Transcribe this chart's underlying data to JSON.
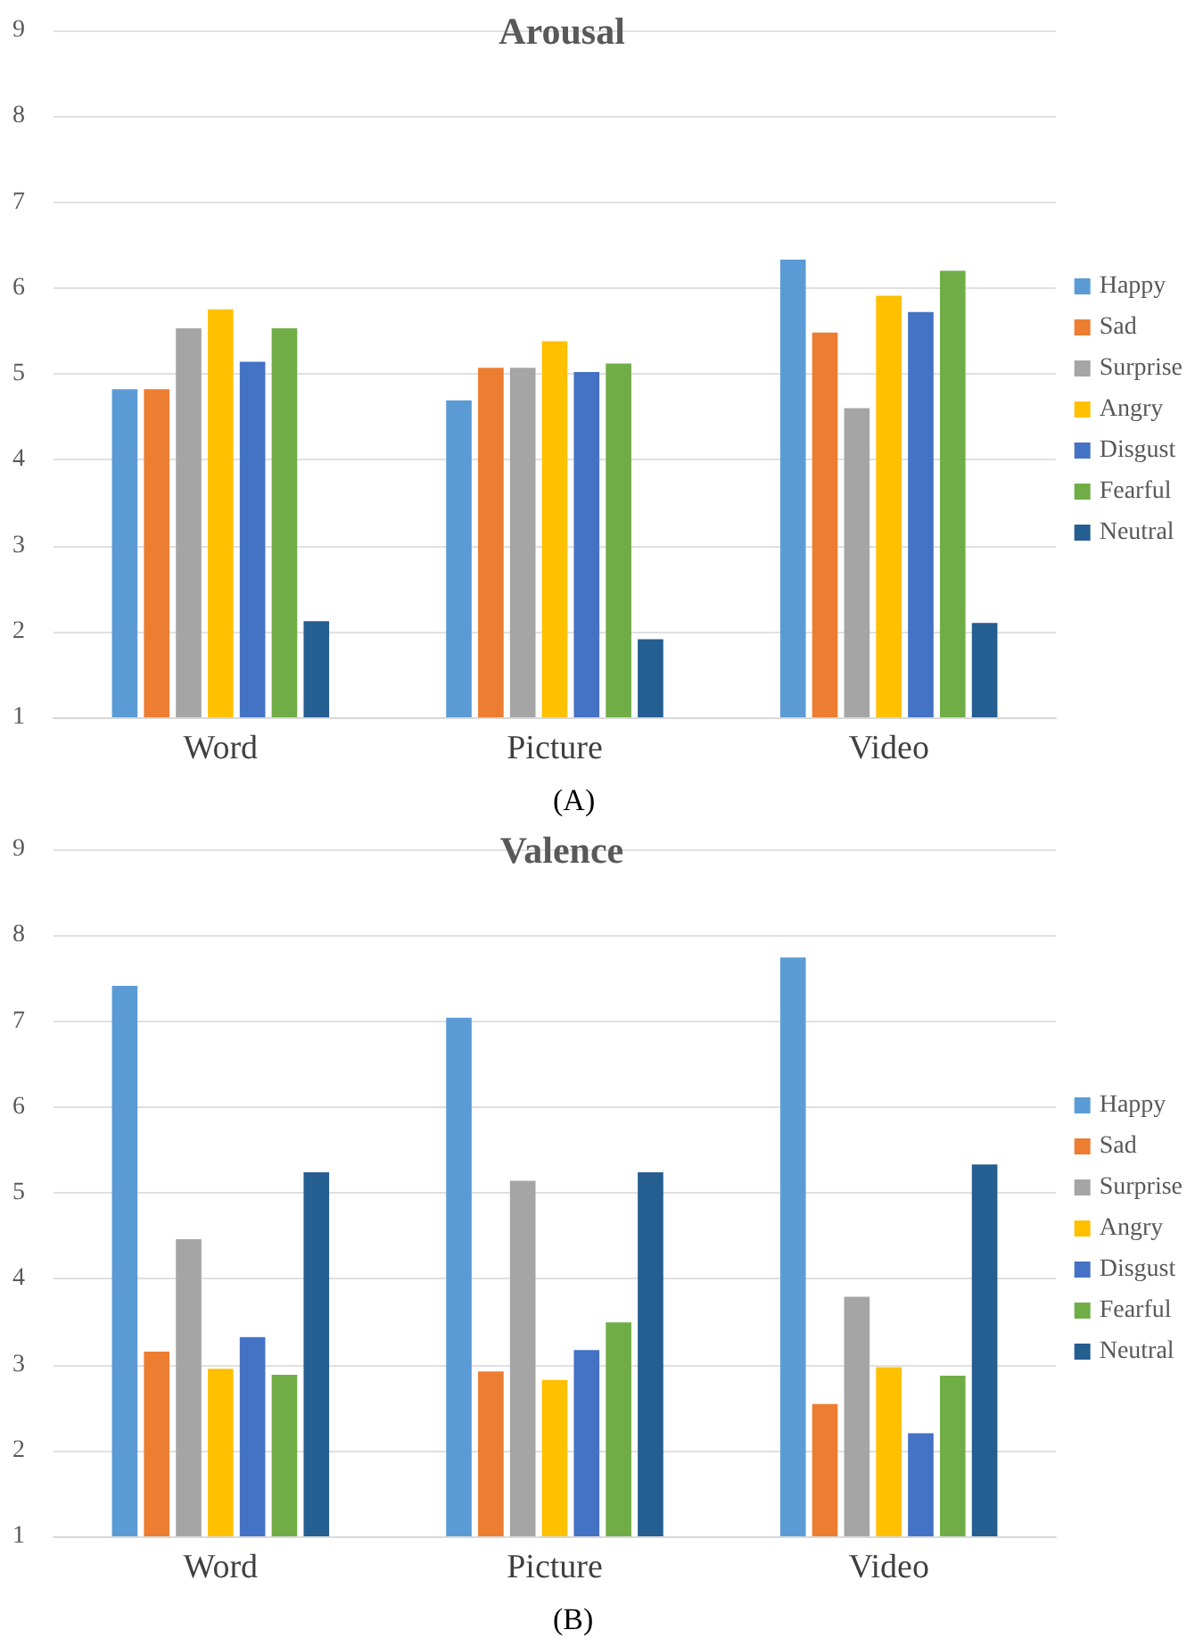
{
  "chart_data": [
    {
      "type": "bar",
      "title": "Arousal",
      "categories": [
        "Word",
        "Picture",
        "Video"
      ],
      "ylim": [
        1,
        9
      ],
      "yticks": [
        1,
        2,
        3,
        4,
        5,
        6,
        7,
        8,
        9
      ],
      "grid": "y",
      "legend": "right",
      "annotations": [
        "(A)"
      ],
      "series": [
        {
          "name": "Happy",
          "color": "#5b9bd5",
          "values": [
            4.82,
            4.69,
            6.33
          ]
        },
        {
          "name": "Sad",
          "color": "#ed7d31",
          "values": [
            4.82,
            5.07,
            5.48
          ]
        },
        {
          "name": "Surprise",
          "color": "#a5a5a5",
          "values": [
            5.53,
            5.07,
            4.6
          ]
        },
        {
          "name": "Angry",
          "color": "#ffc000",
          "values": [
            5.75,
            5.38,
            5.91
          ]
        },
        {
          "name": "Disgust",
          "color": "#4472c4",
          "values": [
            5.14,
            5.02,
            5.72
          ]
        },
        {
          "name": "Fearful",
          "color": "#70ad47",
          "values": [
            5.53,
            5.12,
            6.2
          ]
        },
        {
          "name": "Neutral",
          "color": "#255e91",
          "values": [
            2.12,
            1.91,
            2.1
          ]
        }
      ]
    },
    {
      "type": "bar",
      "title": "Valence",
      "categories": [
        "Word",
        "Picture",
        "Video"
      ],
      "ylim": [
        1,
        9
      ],
      "yticks": [
        1,
        2,
        3,
        4,
        5,
        6,
        7,
        8,
        9
      ],
      "grid": "y",
      "legend": "right",
      "annotations": [
        "(B)"
      ],
      "series": [
        {
          "name": "Happy",
          "color": "#5b9bd5",
          "values": [
            7.41,
            7.04,
            7.74
          ]
        },
        {
          "name": "Sad",
          "color": "#ed7d31",
          "values": [
            3.15,
            2.92,
            2.54
          ]
        },
        {
          "name": "Surprise",
          "color": "#a5a5a5",
          "values": [
            4.46,
            5.14,
            3.79
          ]
        },
        {
          "name": "Angry",
          "color": "#ffc000",
          "values": [
            2.95,
            2.82,
            2.97
          ]
        },
        {
          "name": "Disgust",
          "color": "#4472c4",
          "values": [
            3.32,
            3.17,
            2.2
          ]
        },
        {
          "name": "Fearful",
          "color": "#70ad47",
          "values": [
            2.88,
            3.49,
            2.87
          ]
        },
        {
          "name": "Neutral",
          "color": "#255e91",
          "values": [
            5.24,
            5.24,
            5.33
          ]
        }
      ]
    }
  ]
}
